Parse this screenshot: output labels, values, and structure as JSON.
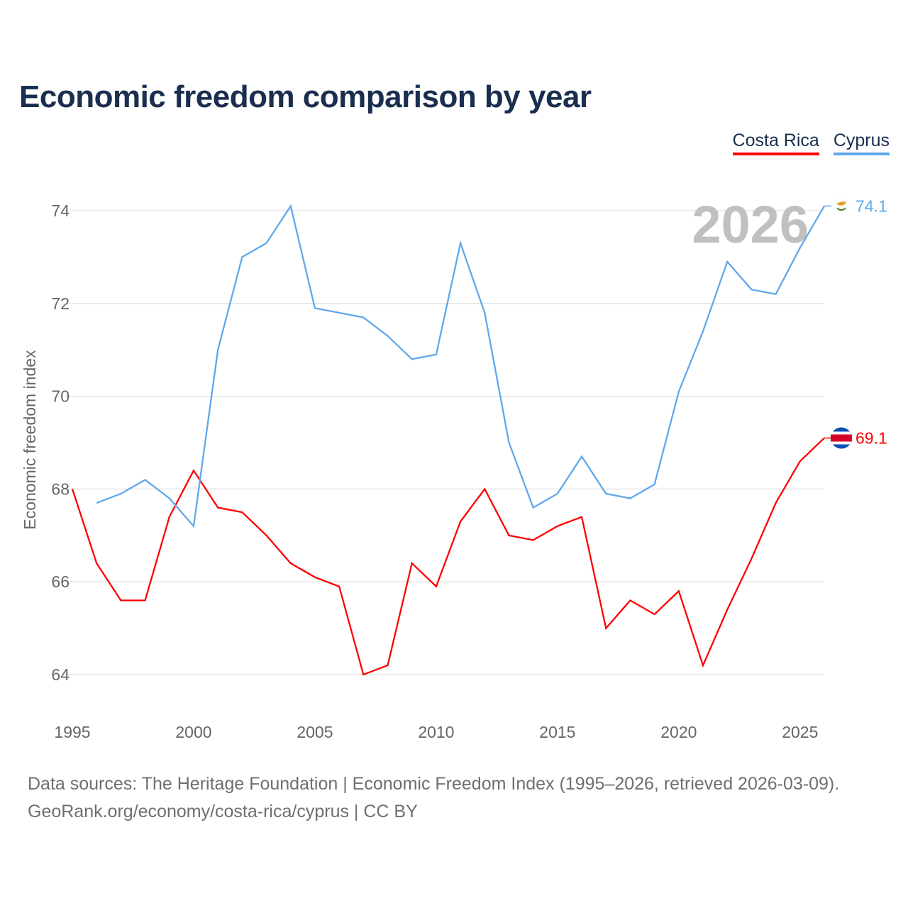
{
  "chart_data": {
    "type": "line",
    "title": "Economic freedom comparison by year",
    "xlabel": "",
    "ylabel": "Economic freedom index",
    "xlim": [
      1995,
      2026
    ],
    "ylim": [
      63,
      75
    ],
    "x_ticks": [
      "1995",
      "2000",
      "2005",
      "2010",
      "2015",
      "2020",
      "2025"
    ],
    "y_ticks": [
      "64",
      "66",
      "68",
      "70",
      "72",
      "74"
    ],
    "grid": true,
    "legend_position": "top-right",
    "year_label": "2026",
    "series": [
      {
        "name": "Costa Rica",
        "color": "#ff0000",
        "end_label": "69.1",
        "x": [
          1995,
          1996,
          1997,
          1998,
          1999,
          2000,
          2001,
          2002,
          2003,
          2004,
          2005,
          2006,
          2007,
          2008,
          2009,
          2010,
          2011,
          2012,
          2013,
          2014,
          2015,
          2016,
          2017,
          2018,
          2019,
          2020,
          2021,
          2022,
          2023,
          2024,
          2025,
          2026
        ],
        "values": [
          68.0,
          66.4,
          65.6,
          65.6,
          67.4,
          68.4,
          67.6,
          67.5,
          67.0,
          66.4,
          66.1,
          65.9,
          64.0,
          64.2,
          66.4,
          65.9,
          67.3,
          68.0,
          67.0,
          66.9,
          67.2,
          67.4,
          65.0,
          65.6,
          65.3,
          65.8,
          64.2,
          65.4,
          66.5,
          67.7,
          68.6,
          69.1
        ]
      },
      {
        "name": "Cyprus",
        "color": "#5fa8ec",
        "end_label": "74.1",
        "x": [
          1996,
          1997,
          1998,
          1999,
          2000,
          2001,
          2002,
          2003,
          2004,
          2005,
          2006,
          2007,
          2008,
          2009,
          2010,
          2011,
          2012,
          2013,
          2014,
          2015,
          2016,
          2017,
          2018,
          2019,
          2020,
          2021,
          2022,
          2023,
          2024,
          2025,
          2026
        ],
        "values": [
          67.7,
          67.9,
          68.2,
          67.8,
          67.2,
          71.0,
          73.0,
          73.3,
          74.1,
          71.9,
          71.8,
          71.7,
          71.3,
          70.8,
          70.9,
          73.3,
          71.8,
          69.0,
          67.6,
          67.9,
          68.7,
          67.9,
          67.8,
          68.1,
          70.1,
          71.4,
          72.9,
          72.3,
          72.2,
          73.2,
          74.1
        ]
      }
    ]
  },
  "footer": {
    "line1": "Data sources: The Heritage Foundation | Economic Freedom Index (1995–2026, retrieved 2026-03-09).",
    "line2": "GeoRank.org/economy/costa-rica/cyprus | CC BY"
  }
}
